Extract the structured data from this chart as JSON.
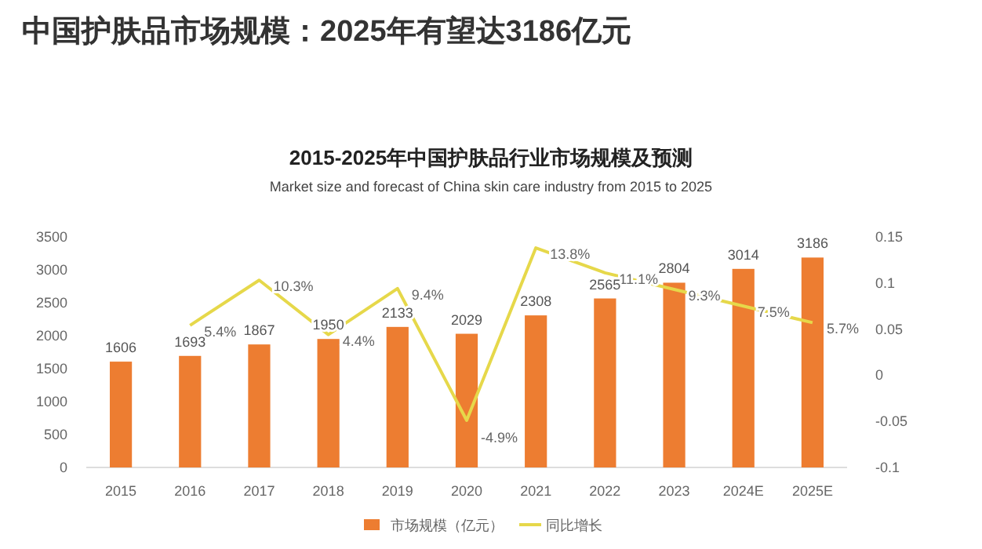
{
  "chart_data": {
    "type": "bar",
    "title": "中国护肤品市场规模：2025年有望达3186亿元",
    "subtitle": "2015-2025年中国护肤品行业市场规模及预测",
    "annotations": [
      "Market size and forecast of China skin care industry from 2015 to 2025"
    ],
    "categories": [
      "2015",
      "2016",
      "2017",
      "2018",
      "2019",
      "2020",
      "2021",
      "2022",
      "2023",
      "2024E",
      "2025E"
    ],
    "series": [
      {
        "name": "市场规模（亿元）",
        "color": "#ed7d31",
        "values": [
          1606,
          1693,
          1867,
          1950,
          2133,
          2029,
          2308,
          2565,
          2804,
          3014,
          3186
        ],
        "value_labels": [
          "1606",
          "1693",
          "1867",
          "1950",
          "2133",
          "2029",
          "2308",
          "2565",
          "2804",
          "3014",
          "3186"
        ]
      },
      {
        "name": "同比增长",
        "type": "line",
        "axis": "y2",
        "color": "#e6d84a",
        "values": [
          null,
          0.054,
          0.103,
          0.044,
          0.094,
          -0.049,
          0.138,
          0.111,
          0.093,
          0.075,
          0.057
        ],
        "value_labels": [
          null,
          "5.4%",
          "10.3%",
          "4.4%",
          "9.4%",
          "-4.9%",
          "13.8%",
          "11.1%",
          "9.3%",
          "7.5%",
          "5.7%"
        ]
      }
    ],
    "ylim": [
      0,
      3500
    ],
    "yticks": [
      0,
      500,
      1000,
      1500,
      2000,
      2500,
      3000,
      3500
    ],
    "y2lim": [
      -0.1,
      0.15
    ],
    "y2ticks": [
      -0.1,
      -0.05,
      0,
      0.05,
      0.1,
      0.15
    ],
    "grid": false,
    "legend": "bottom",
    "marker": "none",
    "line_style": "solid"
  }
}
